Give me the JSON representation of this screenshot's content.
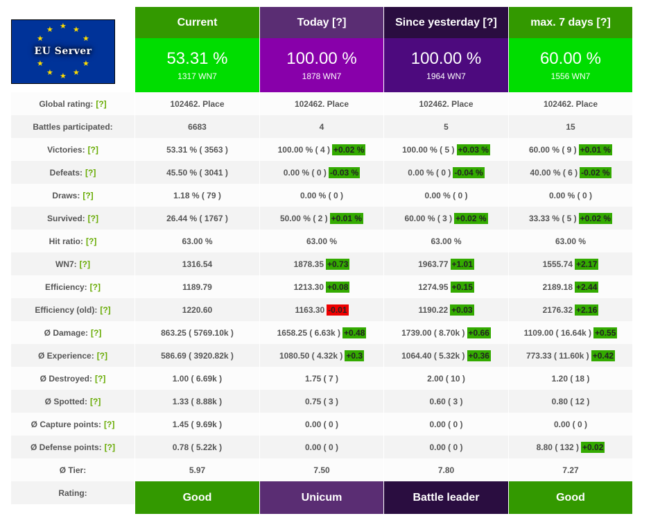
{
  "logo": {
    "text": "EU Server"
  },
  "columns": [
    {
      "title": "Current",
      "rate": "53.31 %",
      "wn7": "1317 WN7",
      "title_color": "#339900",
      "body_color": "#00dd00",
      "rating": "Good",
      "rating_color": "#339900"
    },
    {
      "title": "Today [?]",
      "rate": "100.00 %",
      "wn7": "1878 WN7",
      "title_color": "#5a2d73",
      "body_color": "#8800aa",
      "rating": "Unicum",
      "rating_color": "#5a2d73"
    },
    {
      "title": "Since yesterday [?]",
      "rate": "100.00 %",
      "wn7": "1964 WN7",
      "title_color": "#2a0d40",
      "body_color": "#4d0a7e",
      "rating": "Battle leader",
      "rating_color": "#2a0d40"
    },
    {
      "title": "max. 7 days [?]",
      "rate": "60.00 %",
      "wn7": "1556 WN7",
      "title_color": "#339900",
      "body_color": "#00dd00",
      "rating": "Good",
      "rating_color": "#339900"
    }
  ],
  "help_label": "[?]",
  "rating_label": "Rating:",
  "rows": [
    {
      "label": "Global rating:",
      "help": true,
      "cells": [
        {
          "v": "102462. Place"
        },
        {
          "v": "102462. Place"
        },
        {
          "v": "102462. Place"
        },
        {
          "v": "102462. Place"
        }
      ]
    },
    {
      "label": "Battles participated:",
      "help": false,
      "cells": [
        {
          "v": "6683"
        },
        {
          "v": "4"
        },
        {
          "v": "5"
        },
        {
          "v": "15"
        }
      ]
    },
    {
      "label": "Victories:",
      "help": true,
      "cells": [
        {
          "v": "53.31 % ( 3563 )"
        },
        {
          "v": "100.00 % ( 4 )",
          "d": "+0.02 %"
        },
        {
          "v": "100.00 % ( 5 )",
          "d": "+0.03 %"
        },
        {
          "v": "60.00 % ( 9 )",
          "d": "+0.01 %"
        }
      ]
    },
    {
      "label": "Defeats:",
      "help": true,
      "cells": [
        {
          "v": "45.50 % ( 3041 )"
        },
        {
          "v": "0.00 % ( 0 )",
          "d": "-0.03 %"
        },
        {
          "v": "0.00 % ( 0 )",
          "d": "-0.04 %"
        },
        {
          "v": "40.00 % ( 6 )",
          "d": "-0.02 %"
        }
      ]
    },
    {
      "label": "Draws:",
      "help": true,
      "cells": [
        {
          "v": "1.18 % ( 79 )"
        },
        {
          "v": "0.00 % ( 0 )"
        },
        {
          "v": "0.00 % ( 0 )"
        },
        {
          "v": "0.00 % ( 0 )"
        }
      ]
    },
    {
      "label": "Survived:",
      "help": true,
      "cells": [
        {
          "v": "26.44 % ( 1767 )"
        },
        {
          "v": "50.00 % ( 2 )",
          "d": "+0.01 %"
        },
        {
          "v": "60.00 % ( 3 )",
          "d": "+0.02 %"
        },
        {
          "v": "33.33 % ( 5 )",
          "d": "+0.02 %"
        }
      ]
    },
    {
      "label": "Hit ratio:",
      "help": true,
      "cells": [
        {
          "v": "63.00 %"
        },
        {
          "v": "63.00 %"
        },
        {
          "v": "63.00 %"
        },
        {
          "v": "63.00 %"
        }
      ]
    },
    {
      "label": "WN7:",
      "help": true,
      "cells": [
        {
          "v": "1316.54"
        },
        {
          "v": "1878.35",
          "d": "+0.73"
        },
        {
          "v": "1963.77",
          "d": "+1.01"
        },
        {
          "v": "1555.74",
          "d": "+2.17"
        }
      ]
    },
    {
      "label": "Efficiency:",
      "help": true,
      "cells": [
        {
          "v": "1189.79"
        },
        {
          "v": "1213.30",
          "d": "+0.08"
        },
        {
          "v": "1274.95",
          "d": "+0.15"
        },
        {
          "v": "2189.18",
          "d": "+2.44"
        }
      ]
    },
    {
      "label": "Efficiency (old):",
      "help": true,
      "cells": [
        {
          "v": "1220.60"
        },
        {
          "v": "1163.30",
          "d": "-0.01",
          "neg": true
        },
        {
          "v": "1190.22",
          "d": "+0.03"
        },
        {
          "v": "2176.32",
          "d": "+2.16"
        }
      ]
    },
    {
      "label": "Ø Damage:",
      "help": true,
      "cells": [
        {
          "v": "863.25 ( 5769.10k )"
        },
        {
          "v": "1658.25 ( 6.63k )",
          "d": "+0.48"
        },
        {
          "v": "1739.00 ( 8.70k )",
          "d": "+0.66"
        },
        {
          "v": "1109.00 ( 16.64k )",
          "d": "+0.55"
        }
      ]
    },
    {
      "label": "Ø Experience:",
      "help": true,
      "cells": [
        {
          "v": "586.69 ( 3920.82k )"
        },
        {
          "v": "1080.50 ( 4.32k )",
          "d": "+0.3"
        },
        {
          "v": "1064.40 ( 5.32k )",
          "d": "+0.36"
        },
        {
          "v": "773.33 ( 11.60k )",
          "d": "+0.42"
        }
      ]
    },
    {
      "label": "Ø Destroyed:",
      "help": true,
      "cells": [
        {
          "v": "1.00 ( 6.69k )"
        },
        {
          "v": "1.75 ( 7 )"
        },
        {
          "v": "2.00 ( 10 )"
        },
        {
          "v": "1.20 ( 18 )"
        }
      ]
    },
    {
      "label": "Ø Spotted:",
      "help": true,
      "cells": [
        {
          "v": "1.33 ( 8.88k )"
        },
        {
          "v": "0.75 ( 3 )"
        },
        {
          "v": "0.60 ( 3 )"
        },
        {
          "v": "0.80 ( 12 )"
        }
      ]
    },
    {
      "label": "Ø Capture points:",
      "help": true,
      "cells": [
        {
          "v": "1.45 ( 9.69k )"
        },
        {
          "v": "0.00 ( 0 )"
        },
        {
          "v": "0.00 ( 0 )"
        },
        {
          "v": "0.00 ( 0 )"
        }
      ]
    },
    {
      "label": "Ø Defense points:",
      "help": true,
      "cells": [
        {
          "v": "0.78 ( 5.22k )"
        },
        {
          "v": "0.00 ( 0 )"
        },
        {
          "v": "0.00 ( 0 )"
        },
        {
          "v": "8.80 ( 132 )",
          "d": "+0.02"
        }
      ]
    },
    {
      "label": "Ø Tier:",
      "help": false,
      "cells": [
        {
          "v": "5.97"
        },
        {
          "v": "7.50"
        },
        {
          "v": "7.80"
        },
        {
          "v": "7.27"
        }
      ]
    }
  ]
}
